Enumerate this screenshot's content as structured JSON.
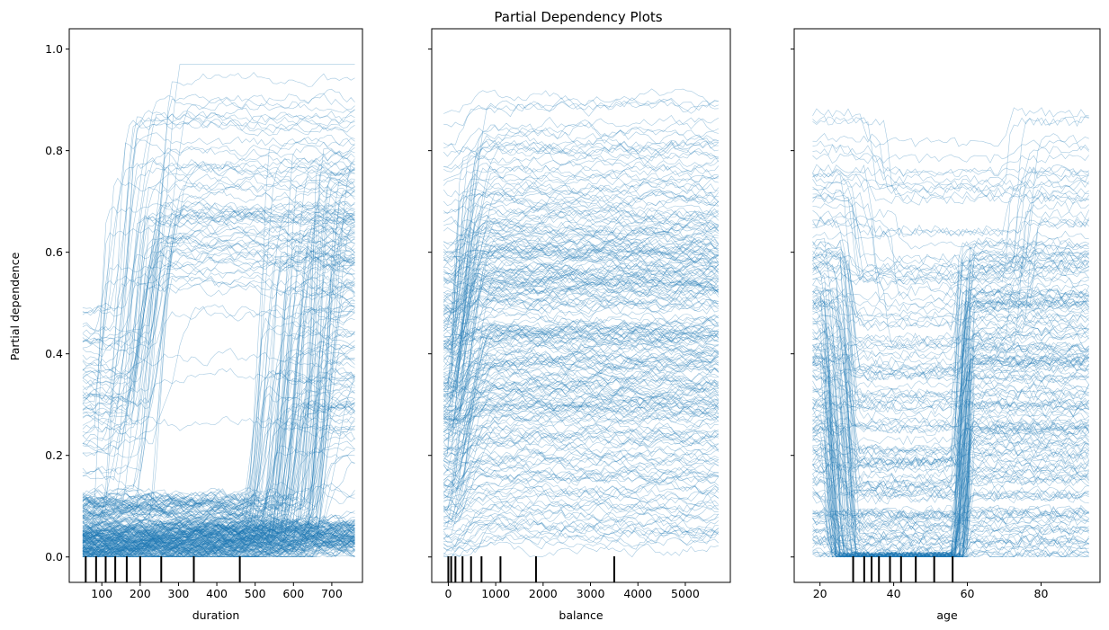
{
  "figure": {
    "title": "Partial Dependency Plots",
    "shared_ylabel": "Partial dependence",
    "line_color": "#1f77b4",
    "rug_color": "#000000"
  },
  "chart_data": [
    {
      "type": "line",
      "style": "ice",
      "xlabel": "duration",
      "ylabel": "Partial dependence",
      "xlim": [
        15,
        780
      ],
      "ylim": [
        -0.05,
        1.04
      ],
      "xticks": [
        100,
        200,
        300,
        400,
        500,
        600,
        700
      ],
      "yticks": [
        0.0,
        0.2,
        0.4,
        0.6,
        0.8,
        1.0
      ],
      "grid": false,
      "x_range": [
        50,
        760
      ],
      "deciles": [
        58,
        85,
        110,
        135,
        165,
        200,
        255,
        340,
        460
      ],
      "curve_families": [
        {
          "name": "flat_low",
          "count": 110,
          "base": [
            0.0,
            0.05
          ],
          "rise": [
            0.0,
            0.03
          ],
          "rise_at": [
            100,
            700
          ]
        },
        {
          "name": "early_rise",
          "count": 40,
          "base": [
            0.02,
            0.45
          ],
          "rise": [
            0.2,
            0.55
          ],
          "rise_at": [
            70,
            240
          ]
        },
        {
          "name": "late_rise",
          "count": 120,
          "base": [
            0.0,
            0.12
          ],
          "rise": [
            0.1,
            0.72
          ],
          "rise_at": [
            460,
            660
          ]
        },
        {
          "name": "plateau_high",
          "count": 30,
          "base": [
            0.25,
            0.5
          ],
          "rise": [
            0.3,
            0.45
          ],
          "rise_at": [
            110,
            230
          ]
        }
      ]
    },
    {
      "type": "line",
      "style": "ice",
      "xlabel": "balance",
      "ylabel": "",
      "xlim": [
        -350,
        5950
      ],
      "ylim": [
        -0.05,
        1.04
      ],
      "xticks": [
        0,
        1000,
        2000,
        3000,
        4000,
        5000
      ],
      "yticks": [
        0.0,
        0.2,
        0.4,
        0.6,
        0.8,
        1.0
      ],
      "grid": false,
      "x_range": [
        -100,
        5700
      ],
      "deciles": [
        0,
        60,
        150,
        300,
        480,
        700,
        1100,
        1850,
        3500
      ],
      "curve_families": [
        {
          "name": "flat_low",
          "count": 150,
          "base": [
            0.0,
            0.6
          ],
          "rise": [
            0.0,
            0.05
          ],
          "rise_at": [
            0,
            300
          ]
        },
        {
          "name": "early_spike",
          "count": 80,
          "base": [
            0.05,
            0.5
          ],
          "rise": [
            0.1,
            0.45
          ],
          "rise_at": [
            -50,
            200
          ]
        },
        {
          "name": "top_band",
          "count": 25,
          "base": [
            0.55,
            0.9
          ],
          "rise": [
            0.0,
            0.08
          ],
          "rise_at": [
            0,
            200
          ]
        }
      ]
    },
    {
      "type": "line",
      "style": "ice",
      "xlabel": "age",
      "ylabel": "",
      "xlim": [
        13,
        96
      ],
      "ylim": [
        -0.05,
        1.04
      ],
      "xticks": [
        20,
        40,
        60,
        80
      ],
      "yticks": [
        0.0,
        0.2,
        0.4,
        0.6,
        0.8,
        1.0
      ],
      "grid": false,
      "x_range": [
        18,
        93
      ],
      "deciles": [
        29,
        32,
        34,
        36,
        39,
        42,
        46,
        51,
        56
      ],
      "curve_families": [
        {
          "name": "dip_and_rise",
          "count": 180,
          "base": [
            0.0,
            0.62
          ],
          "dip": [
            0.0,
            0.45
          ],
          "dip_from": [
            20,
            28
          ],
          "dip_to": [
            58,
            62
          ]
        },
        {
          "name": "top_band",
          "count": 30,
          "base": [
            0.5,
            0.88
          ],
          "dip": [
            0.0,
            0.2
          ],
          "dip_from": [
            25,
            40
          ],
          "dip_to": [
            70,
            80
          ]
        }
      ]
    }
  ]
}
